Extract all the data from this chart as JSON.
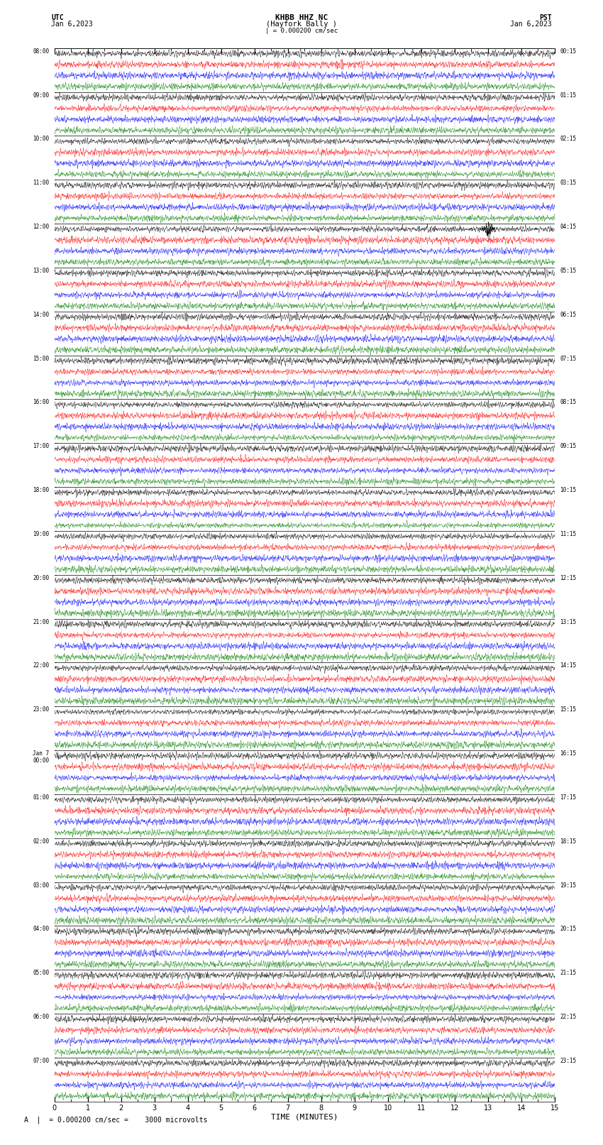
{
  "title_line1": "KHBB HHZ NC",
  "title_line2": "(Hayfork Bally )",
  "scale_text": "| = 0.000200 cm/sec",
  "bottom_annotation": "A  |  = 0.000200 cm/sec =    3000 microvolts",
  "utc_label": "UTC",
  "pst_label": "PST",
  "date_left": "Jan 6,2023",
  "date_right": "Jan 6,2023",
  "xlabel": "TIME (MINUTES)",
  "left_times_utc": [
    "08:00",
    "09:00",
    "10:00",
    "11:00",
    "12:00",
    "13:00",
    "14:00",
    "15:00",
    "16:00",
    "17:00",
    "18:00",
    "19:00",
    "20:00",
    "21:00",
    "22:00",
    "23:00",
    "Jan 7\n00:00",
    "01:00",
    "02:00",
    "03:00",
    "04:00",
    "05:00",
    "06:00",
    "07:00"
  ],
  "right_times_pst": [
    "00:15",
    "01:15",
    "02:15",
    "03:15",
    "04:15",
    "05:15",
    "06:15",
    "07:15",
    "08:15",
    "09:15",
    "10:15",
    "11:15",
    "12:15",
    "13:15",
    "14:15",
    "15:15",
    "16:15",
    "17:15",
    "18:15",
    "19:15",
    "20:15",
    "21:15",
    "22:15",
    "23:15"
  ],
  "n_rows": 24,
  "traces_per_row": 4,
  "colors": [
    "black",
    "red",
    "blue",
    "green"
  ],
  "minutes": 15,
  "fig_width": 8.5,
  "fig_height": 16.13,
  "bg_color": "white",
  "noise_seed": 42
}
